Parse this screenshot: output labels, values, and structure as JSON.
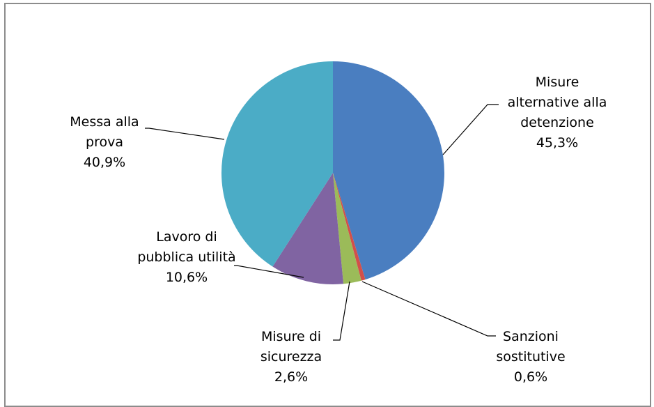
{
  "chart_data": {
    "type": "pie",
    "title": "",
    "slices": [
      {
        "label_lines": [
          "Misure",
          "alternative alla",
          "detenzione"
        ],
        "pct_text": "45,3%",
        "value": 45.3,
        "color": "#4a7ec0"
      },
      {
        "label_lines": [
          "Sanzioni",
          "sostitutive"
        ],
        "pct_text": "0,6%",
        "value": 0.6,
        "color": "#d2504a"
      },
      {
        "label_lines": [
          "Misure di",
          "sicurezza"
        ],
        "pct_text": "2,6%",
        "value": 2.6,
        "color": "#9bbb59"
      },
      {
        "label_lines": [
          "Lavoro di",
          "pubblica utilità"
        ],
        "pct_text": "10,6%",
        "value": 10.6,
        "color": "#8064a2"
      },
      {
        "label_lines": [
          "Messa alla",
          "prova"
        ],
        "pct_text": "40,9%",
        "value": 40.9,
        "color": "#4bacc6"
      }
    ],
    "legend": "none",
    "labels": "outside with leader lines"
  }
}
